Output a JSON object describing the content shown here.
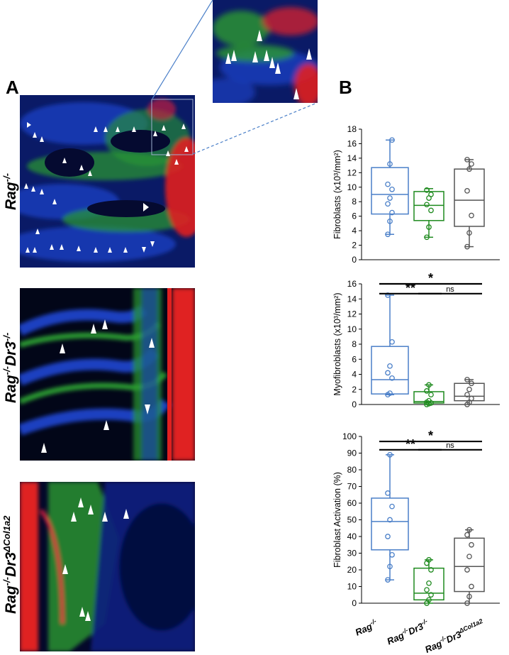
{
  "panels": {
    "a_letter": "A",
    "b_letter": "B"
  },
  "row_labels": [
    {
      "base": "Rag",
      "sup": "-/-",
      "mid": "",
      "sup2": ""
    },
    {
      "base": "Rag",
      "sup": "-/-",
      "mid": "Dr3",
      "sup2": "-/-"
    },
    {
      "base": "Rag",
      "sup": "-/-",
      "mid": "Dr3",
      "sup2": "ΔCol1a2"
    }
  ],
  "chart_data": [
    {
      "type": "box",
      "ylabel": "Fibroblasts (x10³/mm²)",
      "ylim": [
        0,
        18
      ],
      "yticks": [
        0,
        2,
        4,
        6,
        8,
        10,
        12,
        14,
        16,
        18
      ],
      "groups": [
        {
          "color": "#4a7fc8",
          "whisker_low": 3.5,
          "q1": 6.3,
          "median": 9.0,
          "q3": 12.7,
          "whisker_high": 16.5,
          "points": [
            3.5,
            5.3,
            6.5,
            7.7,
            8.5,
            9.7,
            10.4,
            13.2,
            16.5
          ]
        },
        {
          "color": "#1e8a1e",
          "whisker_low": 3.1,
          "q1": 5.4,
          "median": 7.5,
          "q3": 9.4,
          "whisker_high": 9.8,
          "points": [
            3.1,
            4.5,
            6.8,
            7.6,
            8.5,
            9.0,
            9.6
          ]
        },
        {
          "color": "#555555",
          "whisker_low": 1.8,
          "q1": 4.6,
          "median": 8.2,
          "q3": 12.5,
          "whisker_high": 13.8,
          "points": [
            1.8,
            3.7,
            6.1,
            9.5,
            12.5,
            13.2,
            13.8
          ]
        }
      ],
      "significance": []
    },
    {
      "type": "box",
      "ylabel": "Myofibroblasts (x10³/mm²)",
      "ylim": [
        0,
        16
      ],
      "yticks": [
        0,
        2,
        4,
        6,
        8,
        10,
        12,
        14,
        16
      ],
      "groups": [
        {
          "color": "#4a7fc8",
          "whisker_low": 1.3,
          "q1": 1.4,
          "median": 3.3,
          "q3": 7.7,
          "whisker_high": 14.5,
          "points": [
            1.3,
            1.5,
            3.5,
            4.2,
            5.1,
            8.3,
            14.5
          ]
        },
        {
          "color": "#1e8a1e",
          "whisker_low": 0.0,
          "q1": 0.2,
          "median": 0.4,
          "q3": 1.7,
          "whisker_high": 2.6,
          "points": [
            0.0,
            0.1,
            0.2,
            0.3,
            0.5,
            1.3,
            1.8,
            2.6
          ]
        },
        {
          "color": "#555555",
          "whisker_low": 0.0,
          "q1": 0.5,
          "median": 1.1,
          "q3": 2.8,
          "whisker_high": 3.3,
          "points": [
            0.0,
            0.3,
            0.8,
            1.3,
            2.0,
            2.8,
            3.3
          ]
        }
      ],
      "significance": [
        {
          "from": 0,
          "to": 2,
          "y": 16.0,
          "label": "*"
        },
        {
          "from": 0,
          "to": 1,
          "y": 14.7,
          "label": "**"
        },
        {
          "from": 1,
          "to": 2,
          "y": 14.7,
          "label": "ns"
        }
      ]
    },
    {
      "type": "box",
      "ylabel": "Fibroblast Activation (%)",
      "ylim": [
        0,
        100
      ],
      "yticks": [
        0,
        10,
        20,
        30,
        40,
        50,
        60,
        70,
        80,
        90,
        100
      ],
      "groups": [
        {
          "color": "#4a7fc8",
          "whisker_low": 14,
          "q1": 32,
          "median": 49,
          "q3": 63,
          "whisker_high": 89,
          "points": [
            14,
            22,
            29,
            40,
            50,
            58,
            66,
            89
          ]
        },
        {
          "color": "#1e8a1e",
          "whisker_low": 0,
          "q1": 2,
          "median": 6,
          "q3": 21,
          "whisker_high": 26,
          "points": [
            0,
            2,
            5,
            8,
            12,
            20,
            24,
            26
          ]
        },
        {
          "color": "#555555",
          "whisker_low": 0,
          "q1": 7,
          "median": 22,
          "q3": 39,
          "whisker_high": 44,
          "points": [
            0,
            4,
            10,
            20,
            28,
            35,
            41,
            44
          ]
        }
      ],
      "significance": [
        {
          "from": 0,
          "to": 2,
          "y": 97,
          "label": "*"
        },
        {
          "from": 0,
          "to": 1,
          "y": 92,
          "label": "**"
        },
        {
          "from": 1,
          "to": 2,
          "y": 92,
          "label": "ns"
        }
      ]
    }
  ],
  "x_categories": [
    {
      "base": "Rag",
      "sup": "-/-",
      "mid": "",
      "sup2": ""
    },
    {
      "base": "Rag",
      "sup": "-/-",
      "mid": "Dr3",
      "sup2": "-/-"
    },
    {
      "base": "Rag",
      "sup": "-/-",
      "mid": "Dr3",
      "sup2": "ΔCol1a2"
    }
  ]
}
